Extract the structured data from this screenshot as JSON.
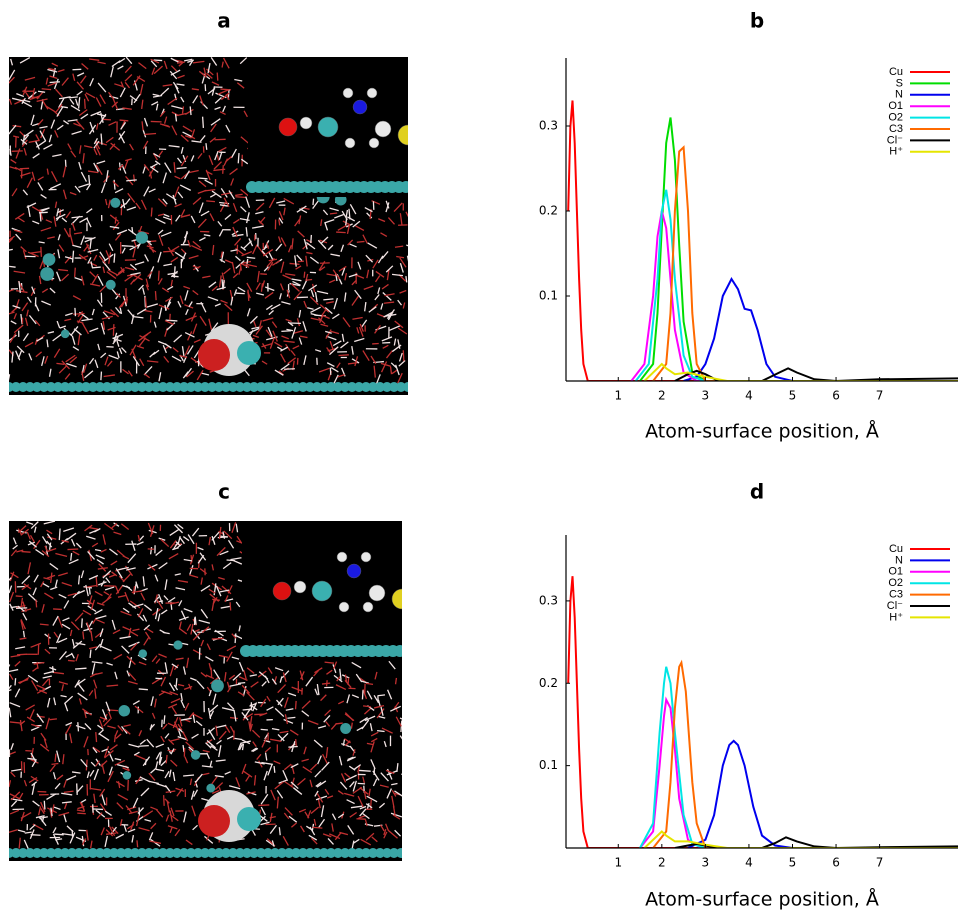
{
  "figure": {
    "panel_labels": [
      "a",
      "b",
      "c",
      "d"
    ]
  },
  "chart_data": [
    {
      "type": "line",
      "title": "b",
      "xlabel": "Atom-surface position, Å",
      "xlim": [
        -0.2,
        8.8
      ],
      "ylim": [
        0,
        0.38
      ],
      "xticks": [
        1,
        2,
        3,
        4,
        5,
        6,
        7
      ],
      "yticks": [
        0.1,
        0.2,
        0.3
      ],
      "legend": "top-right",
      "series": [
        {
          "name": "Cu",
          "color": "#ff0000",
          "x": [
            -0.15,
            -0.1,
            -0.05,
            0,
            0.05,
            0.1,
            0.15,
            0.2,
            0.3,
            0.5,
            1,
            2,
            4,
            6,
            8.8
          ],
          "values": [
            0.2,
            0.3,
            0.33,
            0.28,
            0.2,
            0.12,
            0.06,
            0.02,
            0,
            0,
            0,
            0,
            0,
            0,
            0
          ]
        },
        {
          "name": "S",
          "color": "#00dd00",
          "x": [
            1.5,
            1.8,
            1.9,
            2.0,
            2.1,
            2.2,
            2.3,
            2.4,
            2.5,
            2.7,
            3,
            4,
            8.8
          ],
          "values": [
            0,
            0.02,
            0.08,
            0.18,
            0.28,
            0.31,
            0.26,
            0.16,
            0.07,
            0.01,
            0,
            0,
            0
          ]
        },
        {
          "name": "N",
          "color": "#0000ee",
          "x": [
            2.5,
            2.8,
            3.0,
            3.2,
            3.4,
            3.6,
            3.75,
            3.9,
            4.05,
            4.2,
            4.4,
            4.6,
            5,
            8.8
          ],
          "values": [
            0,
            0.005,
            0.02,
            0.05,
            0.1,
            0.12,
            0.108,
            0.085,
            0.083,
            0.06,
            0.02,
            0.005,
            0,
            0
          ]
        },
        {
          "name": "O1",
          "color": "#ff00ff",
          "x": [
            1.3,
            1.6,
            1.8,
            1.9,
            2.0,
            2.1,
            2.2,
            2.3,
            2.5,
            2.8,
            3.5,
            8.8
          ],
          "values": [
            0,
            0.02,
            0.1,
            0.17,
            0.2,
            0.18,
            0.12,
            0.06,
            0.01,
            0,
            0,
            0
          ]
        },
        {
          "name": "O2",
          "color": "#00e5e5",
          "x": [
            1.4,
            1.7,
            1.9,
            2.0,
            2.1,
            2.2,
            2.3,
            2.5,
            2.7,
            3,
            4,
            8.8
          ],
          "values": [
            0,
            0.02,
            0.12,
            0.2,
            0.225,
            0.19,
            0.12,
            0.03,
            0.005,
            0,
            0,
            0
          ]
        },
        {
          "name": "C3",
          "color": "#ff6a00",
          "x": [
            1.8,
            2.1,
            2.2,
            2.3,
            2.4,
            2.5,
            2.6,
            2.7,
            2.8,
            3.0,
            3.5,
            8.8
          ],
          "values": [
            0,
            0.02,
            0.08,
            0.2,
            0.27,
            0.275,
            0.2,
            0.08,
            0.02,
            0,
            0,
            0
          ]
        },
        {
          "name": "Cl⁻",
          "color": "#000000",
          "x": [
            2.3,
            2.6,
            2.8,
            3.0,
            3.3,
            4.3,
            4.7,
            4.9,
            5.1,
            5.5,
            6,
            7,
            8.8
          ],
          "values": [
            0,
            0.008,
            0.012,
            0.008,
            0,
            0,
            0.01,
            0.015,
            0.01,
            0.002,
            0,
            0.002,
            0.003
          ]
        },
        {
          "name": "H⁺",
          "color": "#e5e500",
          "x": [
            1.6,
            1.9,
            2.0,
            2.1,
            2.3,
            2.6,
            3,
            3.5,
            8.8
          ],
          "values": [
            0,
            0.015,
            0.02,
            0.015,
            0.008,
            0.01,
            0.005,
            0,
            0
          ]
        }
      ]
    },
    {
      "type": "line",
      "title": "d",
      "xlabel": "Atom-surface position, Å",
      "xlim": [
        -0.2,
        8.8
      ],
      "ylim": [
        0,
        0.38
      ],
      "xticks": [
        1,
        2,
        3,
        4,
        5,
        6,
        7
      ],
      "yticks": [
        0.1,
        0.2,
        0.3
      ],
      "legend": "top-right",
      "series": [
        {
          "name": "Cu",
          "color": "#ff0000",
          "x": [
            -0.15,
            -0.1,
            -0.05,
            0,
            0.05,
            0.1,
            0.15,
            0.2,
            0.3,
            0.5,
            1,
            2,
            4,
            6,
            8.8
          ],
          "values": [
            0.2,
            0.3,
            0.33,
            0.28,
            0.2,
            0.12,
            0.06,
            0.02,
            0,
            0,
            0,
            0,
            0,
            0,
            0
          ]
        },
        {
          "name": "N",
          "color": "#0000ee",
          "x": [
            2.6,
            3.0,
            3.2,
            3.4,
            3.55,
            3.65,
            3.75,
            3.9,
            4.1,
            4.3,
            4.6,
            5,
            8.8
          ],
          "values": [
            0,
            0.01,
            0.04,
            0.1,
            0.125,
            0.13,
            0.125,
            0.1,
            0.05,
            0.015,
            0.003,
            0,
            0
          ]
        },
        {
          "name": "O1",
          "color": "#ff00ff",
          "x": [
            1.5,
            1.8,
            1.95,
            2.05,
            2.1,
            2.2,
            2.3,
            2.4,
            2.6,
            2.9,
            3.5,
            8.8
          ],
          "values": [
            0,
            0.02,
            0.1,
            0.16,
            0.18,
            0.17,
            0.12,
            0.06,
            0.01,
            0,
            0,
            0
          ]
        },
        {
          "name": "O2",
          "color": "#00e5e5",
          "x": [
            1.5,
            1.8,
            1.95,
            2.05,
            2.1,
            2.2,
            2.3,
            2.5,
            2.7,
            3,
            4,
            8.8
          ],
          "values": [
            0,
            0.03,
            0.14,
            0.2,
            0.22,
            0.2,
            0.14,
            0.04,
            0.005,
            0,
            0,
            0
          ]
        },
        {
          "name": "C3",
          "color": "#ff6a00",
          "x": [
            1.8,
            2.1,
            2.2,
            2.3,
            2.4,
            2.45,
            2.55,
            2.7,
            2.8,
            3.0,
            3.5,
            8.8
          ],
          "values": [
            0,
            0.02,
            0.08,
            0.17,
            0.22,
            0.225,
            0.19,
            0.08,
            0.03,
            0,
            0,
            0
          ]
        },
        {
          "name": "Cl⁻",
          "color": "#000000",
          "x": [
            2.3,
            2.6,
            2.8,
            3.0,
            3.3,
            4.3,
            4.6,
            4.85,
            5.1,
            5.5,
            6,
            7,
            8.8
          ],
          "values": [
            0,
            0.003,
            0.005,
            0.003,
            0,
            0,
            0.006,
            0.013,
            0.008,
            0.002,
            0,
            0.001,
            0.002
          ]
        },
        {
          "name": "H⁺",
          "color": "#e5e500",
          "x": [
            1.6,
            1.9,
            2.0,
            2.1,
            2.3,
            2.6,
            3,
            3.5,
            8.8
          ],
          "values": [
            0,
            0.015,
            0.02,
            0.015,
            0.008,
            0.008,
            0.004,
            0,
            0
          ]
        }
      ]
    }
  ]
}
